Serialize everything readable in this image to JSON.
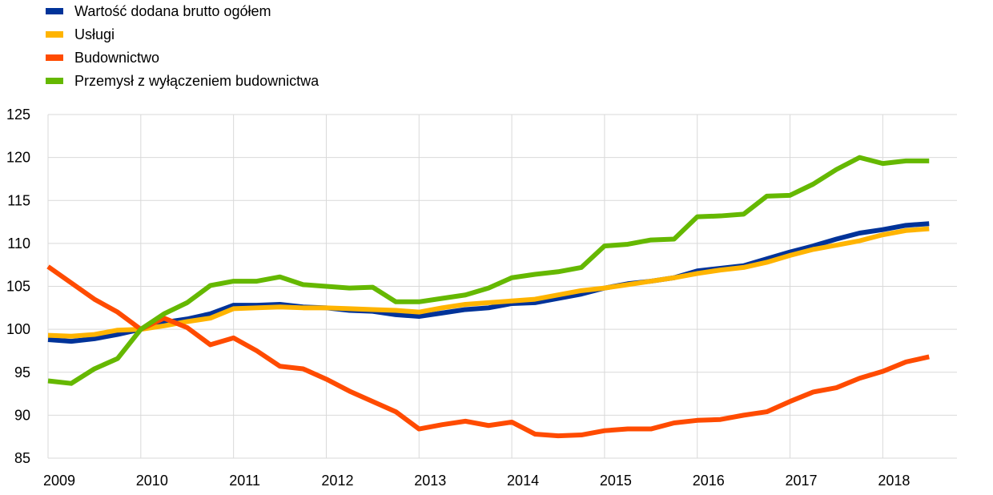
{
  "chart_data": {
    "type": "line",
    "title": "",
    "xlabel": "",
    "ylabel": "",
    "ylim": [
      85,
      125
    ],
    "yticks": [
      85,
      90,
      95,
      100,
      105,
      110,
      115,
      120,
      125
    ],
    "xlim": [
      2009,
      2018.8
    ],
    "xticks": [
      2009,
      2010,
      2011,
      2012,
      2013,
      2014,
      2015,
      2016,
      2017,
      2018
    ],
    "xtick_labels": [
      "2009",
      "2010",
      "2011",
      "2012",
      "2013",
      "2014",
      "2015",
      "2016",
      "2017",
      "2018"
    ],
    "grid": "vertical and horizontal",
    "legend_position": "top-left",
    "x": [
      2009.0,
      2009.25,
      2009.5,
      2009.75,
      2010.0,
      2010.25,
      2010.5,
      2010.75,
      2011.0,
      2011.25,
      2011.5,
      2011.75,
      2012.0,
      2012.25,
      2012.5,
      2012.75,
      2013.0,
      2013.25,
      2013.5,
      2013.75,
      2014.0,
      2014.25,
      2014.5,
      2014.75,
      2015.0,
      2015.25,
      2015.5,
      2015.75,
      2016.0,
      2016.25,
      2016.5,
      2016.75,
      2017.0,
      2017.25,
      2017.5,
      2017.75,
      2018.0,
      2018.25,
      2018.5
    ],
    "series": [
      {
        "name": "Wartość dodana brutto ogółem",
        "color": "#003399",
        "values": [
          98.8,
          98.6,
          98.9,
          99.4,
          100.0,
          100.8,
          101.2,
          101.8,
          102.8,
          102.8,
          102.9,
          102.6,
          102.5,
          102.2,
          102.1,
          101.7,
          101.5,
          101.9,
          102.3,
          102.5,
          103.0,
          103.1,
          103.6,
          104.1,
          104.8,
          105.3,
          105.6,
          106.0,
          106.8,
          107.1,
          107.4,
          108.2,
          109.0,
          109.7,
          110.5,
          111.2,
          111.6,
          112.1,
          112.3
        ]
      },
      {
        "name": "Usługi",
        "color": "#FFB400",
        "values": [
          99.3,
          99.2,
          99.4,
          99.9,
          100.0,
          100.4,
          100.9,
          101.3,
          102.4,
          102.5,
          102.6,
          102.5,
          102.5,
          102.4,
          102.3,
          102.2,
          102.0,
          102.5,
          102.9,
          103.1,
          103.3,
          103.5,
          104.0,
          104.5,
          104.8,
          105.2,
          105.6,
          106.0,
          106.5,
          106.9,
          107.2,
          107.8,
          108.6,
          109.3,
          109.8,
          110.3,
          111.0,
          111.5,
          111.7
        ]
      },
      {
        "name": "Budownictwo",
        "color": "#FF4B00",
        "values": [
          107.3,
          105.4,
          103.5,
          102.0,
          100.0,
          101.3,
          100.2,
          98.2,
          99.0,
          97.5,
          95.7,
          95.4,
          94.2,
          92.8,
          91.6,
          90.4,
          88.4,
          88.9,
          89.3,
          88.8,
          89.2,
          87.8,
          87.6,
          87.7,
          88.2,
          88.4,
          88.4,
          89.1,
          89.4,
          89.5,
          90.0,
          90.4,
          91.6,
          92.7,
          93.2,
          94.3,
          95.1,
          96.2,
          96.8
        ]
      },
      {
        "name": "Przemysł z wyłączeniem budownictwa",
        "color": "#65B800",
        "values": [
          94.0,
          93.7,
          95.4,
          96.6,
          100.0,
          101.8,
          103.1,
          105.1,
          105.6,
          105.6,
          106.1,
          105.2,
          105.0,
          104.8,
          104.9,
          103.2,
          103.2,
          103.6,
          104.0,
          104.8,
          106.0,
          106.4,
          106.7,
          107.2,
          109.7,
          109.9,
          110.4,
          110.5,
          113.1,
          113.2,
          113.4,
          115.5,
          115.6,
          116.9,
          118.6,
          120.0,
          119.3,
          119.6,
          119.6
        ]
      }
    ]
  }
}
